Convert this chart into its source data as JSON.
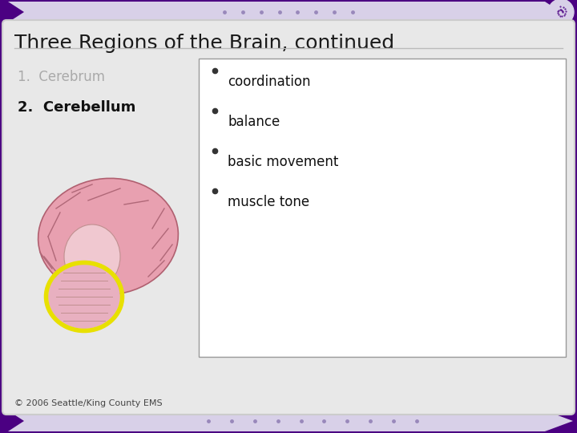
{
  "title": "Three Regions of the Brain, continued",
  "title_fontsize": 18,
  "title_color": "#1a1a1a",
  "bg_slide_color": "#4b0082",
  "bg_content_color": "#e8e8e8",
  "bg_white_color": "#ffffff",
  "left_items": [
    {
      "text": "1.  Cerebrum",
      "color": "#aaaaaa",
      "bold": false,
      "fontsize": 12
    },
    {
      "text": "2.  Cerebellum",
      "color": "#111111",
      "bold": true,
      "fontsize": 13
    }
  ],
  "bullet_items": [
    "coordination",
    "balance",
    "basic movement",
    "muscle tone"
  ],
  "bullet_fontsize": 12,
  "bullet_color": "#111111",
  "footer_text": "© 2006 Seattle/King County EMS",
  "footer_fontsize": 8,
  "footer_color": "#444444",
  "box_border_color": "#999999",
  "chevron_color": "#d8d0e8",
  "dot_color": "#9988bb",
  "purple_dark": "#3a007a"
}
